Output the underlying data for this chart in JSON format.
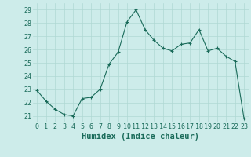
{
  "hours": [
    0,
    1,
    2,
    3,
    4,
    5,
    6,
    7,
    8,
    9,
    10,
    11,
    12,
    13,
    14,
    15,
    16,
    17,
    18,
    19,
    20,
    21,
    22,
    23
  ],
  "values": [
    22.9,
    22.1,
    21.5,
    21.1,
    21.0,
    22.3,
    22.4,
    23.0,
    24.9,
    25.8,
    28.1,
    29.0,
    27.5,
    26.7,
    26.1,
    25.9,
    26.4,
    26.5,
    27.5,
    25.9,
    26.1,
    25.5,
    25.1,
    20.8
  ],
  "line_color": "#1a6b5a",
  "marker_color": "#1a6b5a",
  "bg_color": "#cdecea",
  "grid_color": "#b0d8d4",
  "xlabel": "Humidex (Indice chaleur)",
  "ylim": [
    20.5,
    29.5
  ],
  "yticks": [
    21,
    22,
    23,
    24,
    25,
    26,
    27,
    28,
    29
  ],
  "xticks": [
    0,
    1,
    2,
    3,
    4,
    5,
    6,
    7,
    8,
    9,
    10,
    11,
    12,
    13,
    14,
    15,
    16,
    17,
    18,
    19,
    20,
    21,
    22,
    23
  ],
  "font_color": "#1a6b5a",
  "tick_fontsize": 6,
  "xlabel_fontsize": 7.5
}
